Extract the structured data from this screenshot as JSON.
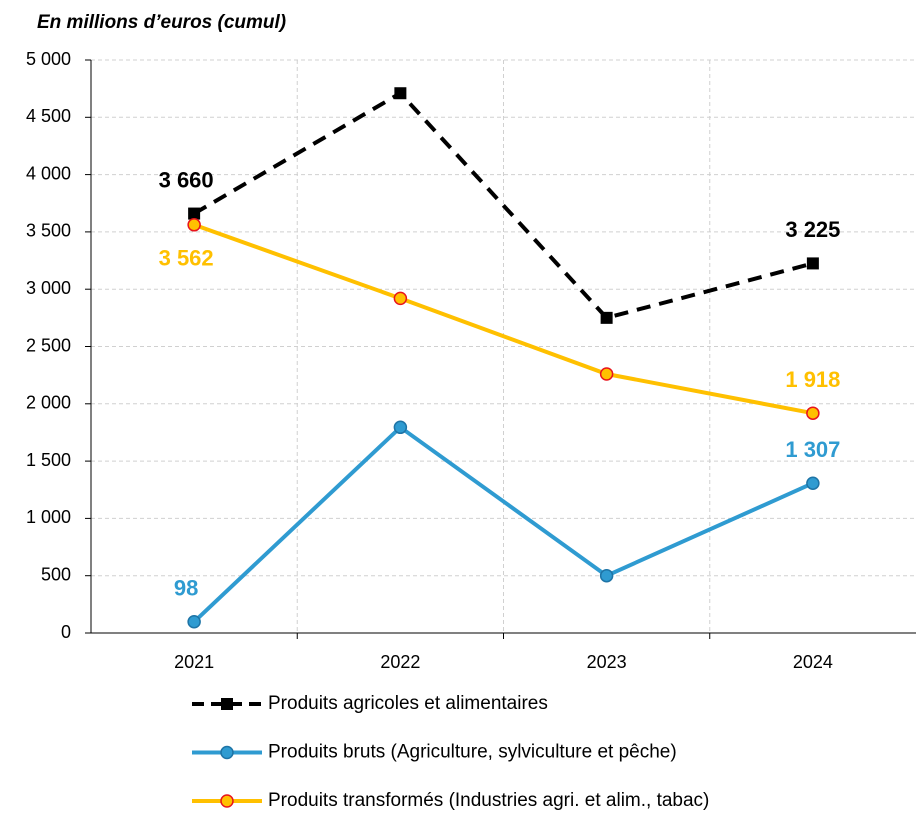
{
  "chart_data": {
    "type": "line",
    "title": "En millions d’euros (cumul)",
    "categories": [
      "2021",
      "2022",
      "2023",
      "2024"
    ],
    "series": [
      {
        "name": "Produits agricoles et alimentaires",
        "color": "#000000",
        "values": [
          3660,
          4710,
          2750,
          3225
        ],
        "value_labels": [
          "3 660",
          null,
          null,
          "3 225"
        ]
      },
      {
        "name": "Produits bruts (Agriculture, sylviculture et pêche)",
        "color": "#2f9bd1",
        "values": [
          98,
          1795,
          500,
          1307
        ],
        "value_labels": [
          "98",
          null,
          null,
          "1 307"
        ]
      },
      {
        "name": "Produits transformés (Industries agri. et alim., tabac)",
        "color": "#ffc000",
        "values": [
          3562,
          2920,
          2260,
          1918
        ],
        "value_labels": [
          "3 562",
          null,
          null,
          "1 918"
        ]
      }
    ],
    "ylim": [
      0,
      5000
    ],
    "yticks": [
      0,
      500,
      {
        "value": 1000,
        "label": "1 000"
      },
      {
        "value": 1500,
        "label": "1 500"
      },
      {
        "value": 2000,
        "label": "2 000"
      },
      {
        "value": 2500,
        "label": "2 500"
      },
      {
        "value": 3000,
        "label": "3 000"
      },
      {
        "value": 3500,
        "label": "3 500"
      },
      {
        "value": 4000,
        "label": "4 000"
      },
      {
        "value": 4500,
        "label": "4 500"
      },
      {
        "value": 5000,
        "label": "5 000"
      }
    ],
    "grid": true
  }
}
